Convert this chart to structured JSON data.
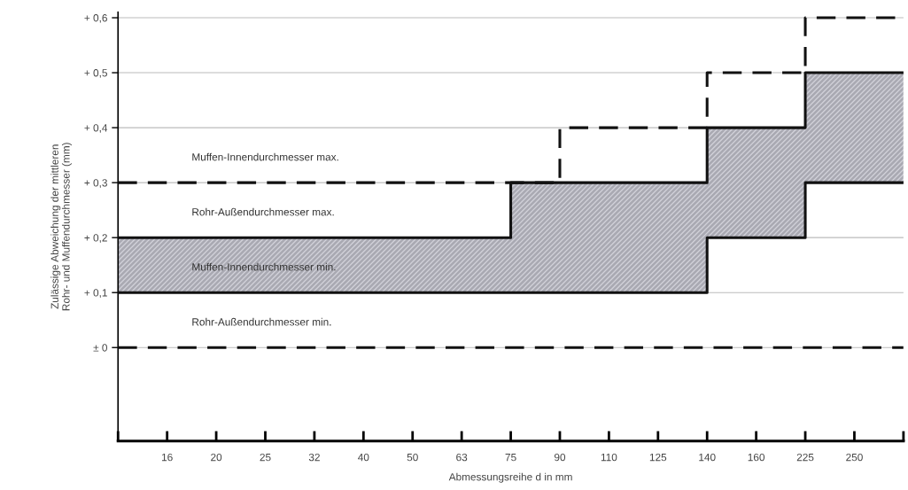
{
  "chart_data": {
    "type": "step",
    "xlabel": "Abmessungsreihe d in mm",
    "ylabel": "Zulässige Abweichung der mittleren\nRohr- und Muffendurchmesser (mm)",
    "categories": [
      null,
      "16",
      "20",
      "25",
      "32",
      "40",
      "50",
      "63",
      "75",
      "90",
      "110",
      "125",
      "140",
      "160",
      "225",
      "250",
      null
    ],
    "series": [
      {
        "name": "Muffen-Innendurchmesser max.",
        "color": "#111111",
        "line_style": "dashed",
        "values": [
          0.3,
          0.3,
          0.3,
          0.3,
          0.3,
          0.3,
          0.3,
          0.3,
          0.3,
          0.4,
          0.4,
          0.4,
          0.5,
          0.5,
          0.6,
          0.6,
          0.6
        ]
      },
      {
        "name": "Rohr-Außendurchmesser max.",
        "color": "#111111",
        "line_style": "solid",
        "values": [
          0.2,
          0.2,
          0.2,
          0.2,
          0.2,
          0.2,
          0.2,
          0.2,
          0.3,
          0.3,
          0.3,
          0.3,
          0.4,
          0.4,
          0.5,
          0.5,
          0.5
        ],
        "lower": [
          0.1,
          0.1,
          0.1,
          0.1,
          0.1,
          0.1,
          0.1,
          0.1,
          0.1,
          0.1,
          0.1,
          0.1,
          0.2,
          0.2,
          0.3,
          0.3,
          0.3
        ],
        "upper": [
          0.2,
          0.2,
          0.2,
          0.2,
          0.2,
          0.2,
          0.2,
          0.2,
          0.3,
          0.3,
          0.3,
          0.3,
          0.4,
          0.4,
          0.5,
          0.5,
          0.5
        ]
      },
      {
        "name": "Muffen-Innendurchmesser min.",
        "color": "#111111",
        "line_style": "solid",
        "values": [
          0.1,
          0.1,
          0.1,
          0.1,
          0.1,
          0.1,
          0.1,
          0.1,
          0.1,
          0.1,
          0.1,
          0.1,
          0.2,
          0.2,
          0.3,
          0.3,
          0.3
        ]
      },
      {
        "name": "Rohr-Außendurchmesser min.",
        "color": "#111111",
        "line_style": "dashed",
        "values": [
          0,
          0,
          0,
          0,
          0,
          0,
          0,
          0,
          0,
          0,
          0,
          0,
          0,
          0,
          0,
          0,
          0
        ]
      }
    ],
    "ylim": [
      -0.17,
      0.61
    ],
    "yticks": [
      {
        "value": 0,
        "label": "± 0"
      },
      {
        "value": 0.1,
        "label": "+ 0,1"
      },
      {
        "value": 0.2,
        "label": "+ 0,2"
      },
      {
        "value": 0.3,
        "label": "+ 0,3"
      },
      {
        "value": 0.4,
        "label": "+ 0,4"
      },
      {
        "value": 0.5,
        "label": "+ 0,5"
      },
      {
        "value": 0.6,
        "label": "+ 0,6"
      }
    ],
    "grid": "y"
  }
}
